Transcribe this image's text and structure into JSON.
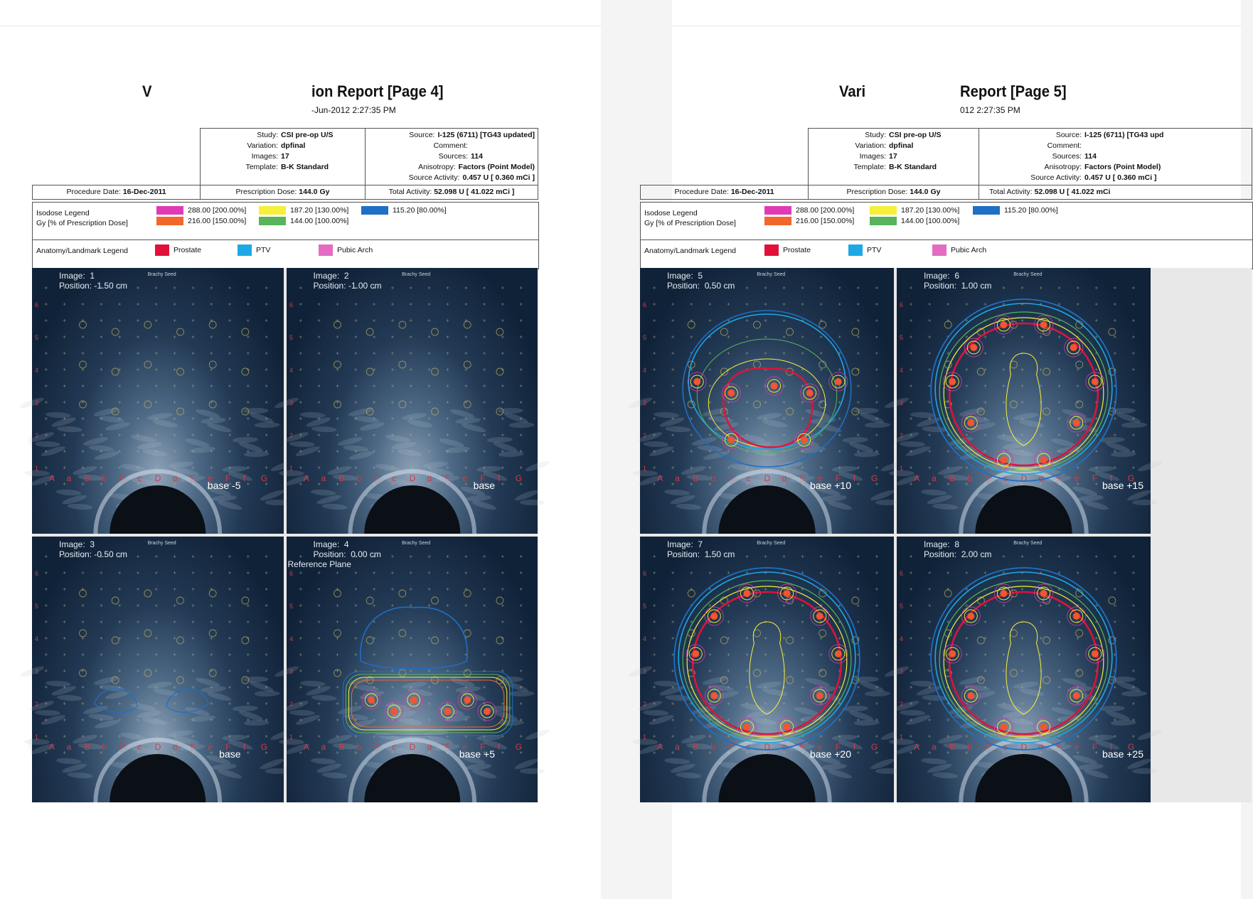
{
  "colors": {
    "iso_200": "#e13ab6",
    "iso_150": "#f0682a",
    "iso_130": "#f6f03a",
    "iso_100": "#58b45a",
    "iso_80": "#1f6fc4",
    "prostate": "#e0123a",
    "ptv": "#1ea8e4",
    "pubic_arch": "#e36cc2"
  },
  "pages": [
    {
      "title_left": "V",
      "title_right": "ion Report [Page 4]",
      "subtitle": "-Jun-2012 2:27:35 PM",
      "study_label": "Study:",
      "study": "CSI pre-op U/S",
      "variation_label": "Variation:",
      "variation": "dpfinal",
      "images_label": "Images:",
      "images": "17",
      "template_label": "Template:",
      "template": "B-K Standard",
      "source_label": "Source:",
      "source": "I-125 (6711) [TG43 updated]",
      "comment_label": "Comment:",
      "sources_label": "Sources:",
      "sources": "114",
      "anisotropy_label": "Anisotropy:",
      "anisotropy": "Factors (Point Model)",
      "source_activity_label": "Source Activity:",
      "source_activity": "0.457 U [ 0.360 mCi ]",
      "procedure_label": "Procedure Date:",
      "procedure": "16-Dec-2011",
      "rx_label": "Prescription Dose:",
      "rx": "144.0 Gy",
      "total_label": "Total Activity:",
      "total": "52.098 U [ 41.022 mCi ]",
      "isodose_legend_1": "Isodose Legend",
      "isodose_legend_2": "Gy [% of Prescription Dose]",
      "iso": [
        "288.00  [200.00%]",
        "216.00  [150.00%]",
        "187.20  [130.00%]",
        "144.00  [100.00%]",
        "115.20  [80.00%]"
      ],
      "anatomy_legend": "Anatomy/Landmark Legend",
      "anatomy": [
        "Prostate",
        "PTV",
        "Pubic Arch"
      ],
      "panels": [
        {
          "label": "Image:  1\nPosition: -1.50 cm",
          "base": "base -5"
        },
        {
          "label": "Image:  2\nPosition: -1.00 cm",
          "base": "base"
        },
        {
          "label": "Image:  3\nPosition: -0.50 cm",
          "base": "base"
        },
        {
          "label": "Image:  4\nPosition:  0.00 cm",
          "extra": "Reference Plane",
          "base": "base +5"
        }
      ]
    },
    {
      "title_left": "Vari",
      "title_right": "Report [Page 5]",
      "subtitle": "012 2:27:35 PM",
      "study_label": "Study:",
      "study": "CSI pre-op U/S",
      "variation_label": "Variation:",
      "variation": "dpfinal",
      "images_label": "Images:",
      "images": "17",
      "template_label": "Template:",
      "template": "B-K Standard",
      "source_label": "Source:",
      "source": "I-125 (6711) [TG43 upd",
      "comment_label": "Comment:",
      "sources_label": "Sources:",
      "sources": "114",
      "anisotropy_label": "Anisotropy:",
      "anisotropy": "Factors (Point Model)",
      "source_activity_label": "Source Activity:",
      "source_activity": "0.457 U [ 0.360 mCi ]",
      "procedure_label": "Procedure Date:",
      "procedure": "16-Dec-2011",
      "rx_label": "Prescription Dose:",
      "rx": "144.0 Gy",
      "total_label": "Total Activity:",
      "total": "52.098 U [ 41.022 mCi",
      "isodose_legend_1": "Isodose Legend",
      "isodose_legend_2": "Gy [% of Prescription Dose]",
      "iso": [
        "288.00  [200.00%]",
        "216.00  [150.00%]",
        "187.20  [130.00%]",
        "144.00  [100.00%]",
        "115.20  [80.00%]"
      ],
      "anatomy_legend": "Anatomy/Landmark Legend",
      "anatomy": [
        "Prostate",
        "PTV",
        "Pubic Arch"
      ],
      "panels": [
        {
          "label": "Image:  5\nPosition:  0.50 cm",
          "base": "base +10"
        },
        {
          "label": "Image:  6\nPosition:  1.00 cm",
          "base": "base +15"
        },
        {
          "label": "Image:  7\nPosition:  1.50 cm",
          "base": "base +20"
        },
        {
          "label": "Image:  8\nPosition:  2.00 cm",
          "base": "base +25"
        }
      ]
    }
  ]
}
